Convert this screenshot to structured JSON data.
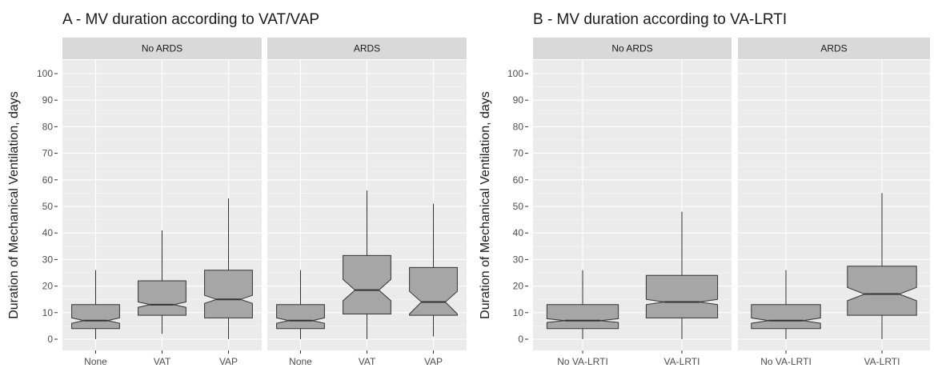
{
  "chart_data": [
    {
      "type": "boxplot",
      "title": "A - MV duration according to VAT/VAP",
      "ylabel": "Duration of Mechanical Ventilation, days",
      "xlabel": "",
      "ylim": [
        0,
        100
      ],
      "yticks": [
        0,
        10,
        20,
        30,
        40,
        50,
        60,
        70,
        80,
        90,
        100
      ],
      "notched": true,
      "box_color": "#a6a6a6",
      "grid": true,
      "facets": [
        {
          "label": "No ARDS",
          "categories": [
            "None",
            "VAT",
            "VAP"
          ],
          "boxes": [
            {
              "whisker_low": 0,
              "q1": 4,
              "median": 7,
              "q3": 13,
              "whisker_high": 26,
              "notch_low": 6,
              "notch_high": 8
            },
            {
              "whisker_low": 2,
              "q1": 9,
              "median": 13,
              "q3": 22,
              "whisker_high": 41,
              "notch_low": 12,
              "notch_high": 14
            },
            {
              "whisker_low": 0,
              "q1": 8,
              "median": 15,
              "q3": 26,
              "whisker_high": 53,
              "notch_low": 13.5,
              "notch_high": 16.5
            }
          ]
        },
        {
          "label": "ARDS",
          "categories": [
            "None",
            "VAT",
            "VAP"
          ],
          "boxes": [
            {
              "whisker_low": 0,
              "q1": 4,
              "median": 7,
              "q3": 13,
              "whisker_high": 26,
              "notch_low": 6,
              "notch_high": 8
            },
            {
              "whisker_low": 0,
              "q1": 9.5,
              "median": 18.5,
              "q3": 31.5,
              "whisker_high": 56,
              "notch_low": 14.5,
              "notch_high": 22.5
            },
            {
              "whisker_low": 1,
              "q1": 9,
              "median": 14,
              "q3": 27,
              "whisker_high": 51,
              "notch_low": 9.5,
              "notch_high": 18
            }
          ]
        }
      ]
    },
    {
      "type": "boxplot",
      "title": "B - MV duration according to VA-LRTI",
      "ylabel": "Duration of Mechanical Ventilation, days",
      "xlabel": "",
      "ylim": [
        0,
        100
      ],
      "yticks": [
        0,
        10,
        20,
        30,
        40,
        50,
        60,
        70,
        80,
        90,
        100
      ],
      "notched": true,
      "box_color": "#a6a6a6",
      "grid": true,
      "facets": [
        {
          "label": "No ARDS",
          "categories": [
            "No VA-LRTI",
            "VA-LRTI"
          ],
          "boxes": [
            {
              "whisker_low": 0,
              "q1": 4,
              "median": 7,
              "q3": 13,
              "whisker_high": 26,
              "notch_low": 6.3,
              "notch_high": 7.7
            },
            {
              "whisker_low": 0,
              "q1": 8,
              "median": 14,
              "q3": 24,
              "whisker_high": 48,
              "notch_low": 13,
              "notch_high": 15
            }
          ]
        },
        {
          "label": "ARDS",
          "categories": [
            "No VA-LRTI",
            "VA-LRTI"
          ],
          "boxes": [
            {
              "whisker_low": 0,
              "q1": 4,
              "median": 7,
              "q3": 13,
              "whisker_high": 26,
              "notch_low": 6,
              "notch_high": 8
            },
            {
              "whisker_low": 0,
              "q1": 9,
              "median": 17,
              "q3": 27.5,
              "whisker_high": 55,
              "notch_low": 14.5,
              "notch_high": 19.5
            }
          ]
        }
      ]
    }
  ]
}
